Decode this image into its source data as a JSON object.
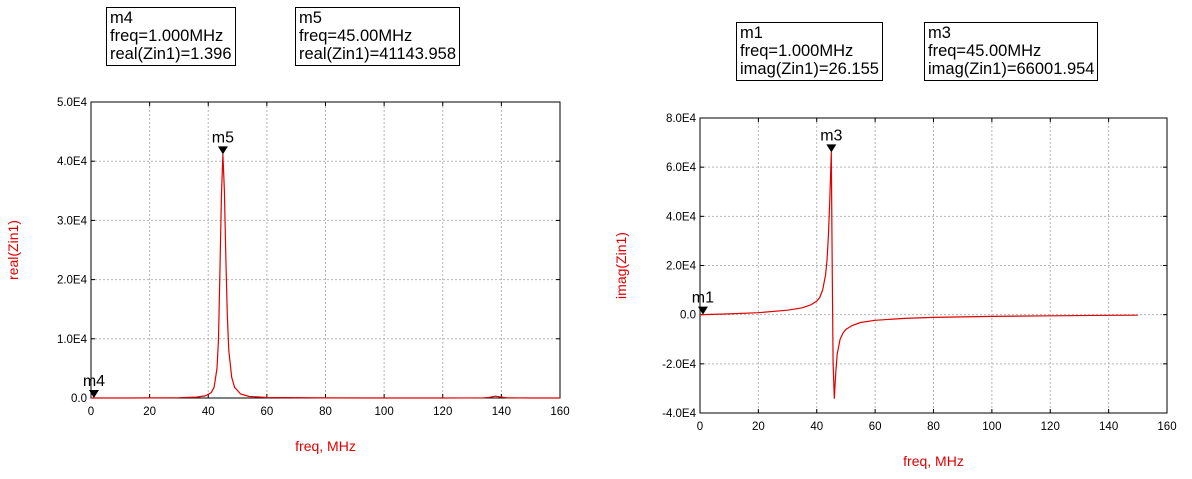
{
  "charts": [
    {
      "id": "left",
      "marker_boxes": [
        {
          "name": "m4",
          "freq": "freq=1.000MHz",
          "value": "real(Zin1)=1.396"
        },
        {
          "name": "m5",
          "freq": "freq=45.00MHz",
          "value": "real(Zin1)=41143.958"
        }
      ]
    },
    {
      "id": "right",
      "marker_boxes": [
        {
          "name": "m1",
          "freq": "freq=1.000MHz",
          "value": "imag(Zin1)=26.155"
        },
        {
          "name": "m3",
          "freq": "freq=45.00MHz",
          "value": "imag(Zin1)=66001.954"
        }
      ]
    }
  ],
  "chart_data": [
    {
      "type": "line",
      "xlabel": "freq, MHz",
      "ylabel": "real(Zin1)",
      "xlim": [
        0,
        160
      ],
      "ylim": [
        0,
        50000
      ],
      "x_ticks": [
        "0",
        "20",
        "40",
        "60",
        "80",
        "100",
        "120",
        "140",
        "160"
      ],
      "x_tick_values": [
        0,
        20,
        40,
        60,
        80,
        100,
        120,
        140,
        160
      ],
      "y_ticks": [
        "0.0",
        "1.0E4",
        "2.0E4",
        "3.0E4",
        "4.0E4",
        "5.0E4"
      ],
      "y_tick_values": [
        0,
        10000,
        20000,
        30000,
        40000,
        50000
      ],
      "grid": true,
      "line_color": "#e00000",
      "series": [
        {
          "x": [
            0,
            1,
            10,
            20,
            30,
            36,
            39,
            41,
            42,
            43,
            43.5,
            44,
            44.5,
            45,
            45.5,
            46,
            46.5,
            47,
            48,
            49,
            51,
            54,
            60,
            80,
            100,
            120,
            134,
            136,
            138,
            140,
            142,
            150,
            160
          ],
          "values": [
            1,
            1.396,
            5,
            15,
            50,
            150,
            350,
            900,
            1800,
            5000,
            10000,
            22000,
            34000,
            41143.958,
            35000,
            24000,
            14000,
            8000,
            3500,
            1800,
            700,
            250,
            90,
            20,
            8,
            6,
            30,
            120,
            300,
            150,
            40,
            5,
            2
          ]
        }
      ],
      "markers": [
        {
          "label": "m4",
          "x": 1,
          "y": 1.396
        },
        {
          "label": "m5",
          "x": 45,
          "y": 41143.958
        }
      ]
    },
    {
      "type": "line",
      "xlabel": "freq, MHz",
      "ylabel": "imag(Zin1)",
      "xlim": [
        0,
        160
      ],
      "ylim": [
        -40000,
        80000
      ],
      "x_ticks": [
        "0",
        "20",
        "40",
        "60",
        "80",
        "100",
        "120",
        "140",
        "160"
      ],
      "x_tick_values": [
        0,
        20,
        40,
        60,
        80,
        100,
        120,
        140,
        160
      ],
      "y_ticks": [
        "-4.0E4",
        "-2.0E4",
        "0.0",
        "2.0E4",
        "4.0E4",
        "6.0E4",
        "8.0E4"
      ],
      "y_tick_values": [
        -40000,
        -20000,
        0,
        20000,
        40000,
        60000,
        80000
      ],
      "grid": true,
      "line_color": "#e00000",
      "series": [
        {
          "x": [
            0,
            1,
            10,
            20,
            30,
            35,
            38,
            40,
            41,
            42,
            43,
            43.5,
            44,
            44.5,
            45,
            45.3,
            45.6,
            46,
            46.5,
            47,
            48,
            49,
            50,
            52,
            55,
            60,
            70,
            80,
            100,
            120,
            140,
            150
          ],
          "values": [
            20,
            26.155,
            300,
            800,
            1800,
            2800,
            4000,
            5500,
            7000,
            10000,
            16000,
            22000,
            32000,
            48000,
            66001.954,
            20000,
            -20000,
            -34000,
            -24000,
            -16000,
            -10000,
            -7500,
            -6000,
            -4500,
            -3200,
            -2300,
            -1500,
            -1100,
            -700,
            -450,
            -250,
            -200
          ]
        }
      ],
      "markers": [
        {
          "label": "m1",
          "x": 1,
          "y": 26.155
        },
        {
          "label": "m3",
          "x": 45,
          "y": 66001.954
        }
      ]
    }
  ]
}
